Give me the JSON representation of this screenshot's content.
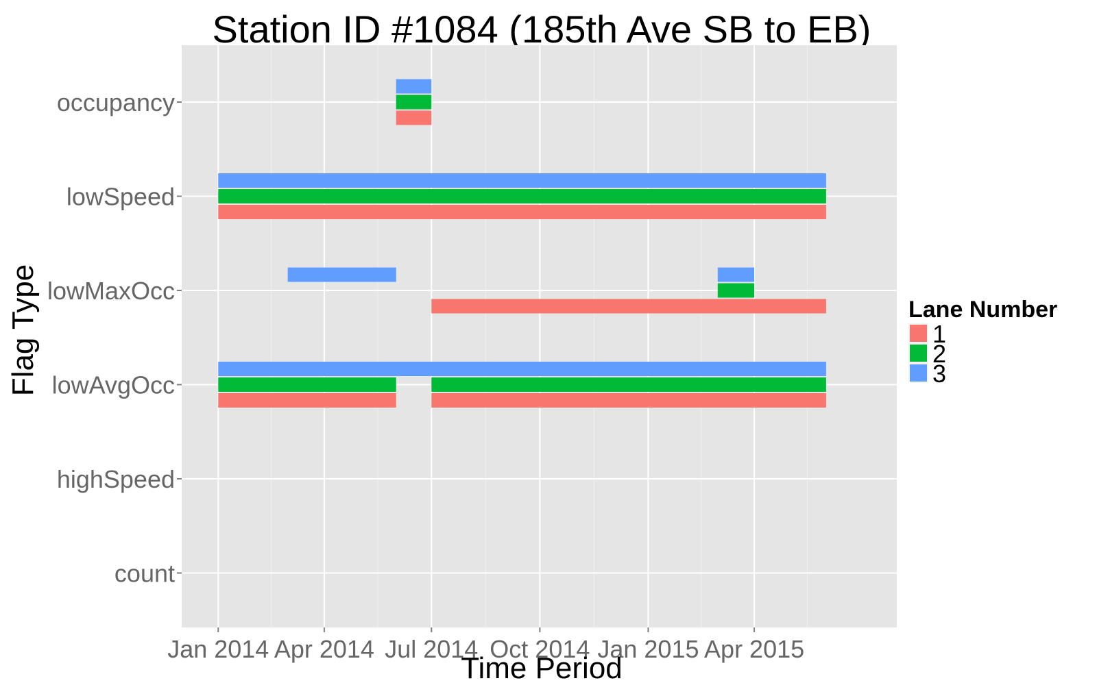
{
  "chart_data": {
    "type": "bar",
    "orientation": "horizontal-timeline",
    "title": "Station ID #1084 (185th Ave SB to EB)",
    "xlabel": "Time Period",
    "ylabel": "Flag Type",
    "x_domain": [
      "2013-12-01",
      "2015-07-31"
    ],
    "x_ticks": [
      {
        "date": "2014-01-01",
        "label": "Jan 2014"
      },
      {
        "date": "2014-04-01",
        "label": "Apr 2014"
      },
      {
        "date": "2014-07-01",
        "label": "Jul 2014"
      },
      {
        "date": "2014-10-01",
        "label": "Oct 2014"
      },
      {
        "date": "2015-01-01",
        "label": "Jan 2015"
      },
      {
        "date": "2015-04-01",
        "label": "Apr 2015"
      }
    ],
    "categories": [
      "occupancy",
      "lowSpeed",
      "lowMaxOcc",
      "lowAvgOcc",
      "highSpeed",
      "count"
    ],
    "grid": true,
    "legend": {
      "title": "Lane Number",
      "position": "right",
      "items": [
        {
          "label": "1",
          "color": "#F8766D"
        },
        {
          "label": "2",
          "color": "#00BA38"
        },
        {
          "label": "3",
          "color": "#619CFF"
        }
      ]
    },
    "series": [
      {
        "name": "1",
        "color": "#F8766D",
        "intervals": [
          {
            "category": "occupancy",
            "start": "2014-06-01",
            "end": "2014-07-01"
          },
          {
            "category": "lowSpeed",
            "start": "2014-01-01",
            "end": "2015-06-01"
          },
          {
            "category": "lowMaxOcc",
            "start": "2014-07-01",
            "end": "2015-06-01"
          },
          {
            "category": "lowAvgOcc",
            "start": "2014-01-01",
            "end": "2014-06-01"
          },
          {
            "category": "lowAvgOcc",
            "start": "2014-07-01",
            "end": "2015-06-01"
          }
        ]
      },
      {
        "name": "2",
        "color": "#00BA38",
        "intervals": [
          {
            "category": "occupancy",
            "start": "2014-06-01",
            "end": "2014-07-01"
          },
          {
            "category": "lowSpeed",
            "start": "2014-01-01",
            "end": "2015-06-01"
          },
          {
            "category": "lowMaxOcc",
            "start": "2015-03-01",
            "end": "2015-04-01"
          },
          {
            "category": "lowAvgOcc",
            "start": "2014-01-01",
            "end": "2014-06-01"
          },
          {
            "category": "lowAvgOcc",
            "start": "2014-07-01",
            "end": "2015-06-01"
          }
        ]
      },
      {
        "name": "3",
        "color": "#619CFF",
        "intervals": [
          {
            "category": "occupancy",
            "start": "2014-06-01",
            "end": "2014-07-01"
          },
          {
            "category": "lowSpeed",
            "start": "2014-01-01",
            "end": "2015-06-01"
          },
          {
            "category": "lowMaxOcc",
            "start": "2014-03-01",
            "end": "2014-06-01"
          },
          {
            "category": "lowMaxOcc",
            "start": "2015-03-01",
            "end": "2015-04-01"
          },
          {
            "category": "lowAvgOcc",
            "start": "2014-01-01",
            "end": "2015-06-01"
          }
        ]
      }
    ]
  },
  "style": {
    "panel_background": "#E5E5E5",
    "grid_major": "#FFFFFF",
    "grid_minor": "#F0F0F0",
    "tick_color": "#7F7F7F"
  }
}
